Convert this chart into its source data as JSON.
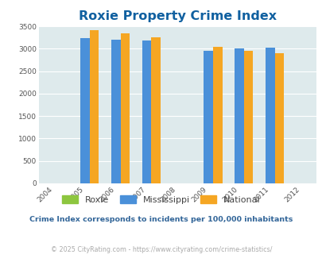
{
  "title": "Roxie Property Crime Index",
  "years_all": [
    2004,
    2005,
    2006,
    2007,
    2008,
    2009,
    2010,
    2011,
    2012
  ],
  "bar_years": [
    2005,
    2006,
    2007,
    2009,
    2010,
    2011
  ],
  "roxie": [
    0,
    0,
    0,
    0,
    0,
    0
  ],
  "mississippi": [
    3240,
    3200,
    3185,
    2960,
    3000,
    3020
  ],
  "national": [
    3410,
    3340,
    3250,
    3040,
    2960,
    2900
  ],
  "bar_width": 0.3,
  "ylim": [
    0,
    3500
  ],
  "yticks": [
    0,
    500,
    1000,
    1500,
    2000,
    2500,
    3000,
    3500
  ],
  "colors": {
    "roxie": "#8dc63f",
    "mississippi": "#4a90d9",
    "national": "#f5a623"
  },
  "title_color": "#1060a0",
  "title_fontsize": 11.5,
  "bg_color": "#deeaec",
  "grid_color": "#ffffff",
  "legend_labels": [
    "Roxie",
    "Mississippi",
    "National"
  ],
  "footnote1": "Crime Index corresponds to incidents per 100,000 inhabitants",
  "footnote2": "© 2025 CityRating.com - https://www.cityrating.com/crime-statistics/",
  "footnote1_color": "#336699",
  "footnote2_color": "#aaaaaa",
  "xlabel": "",
  "ylabel": ""
}
